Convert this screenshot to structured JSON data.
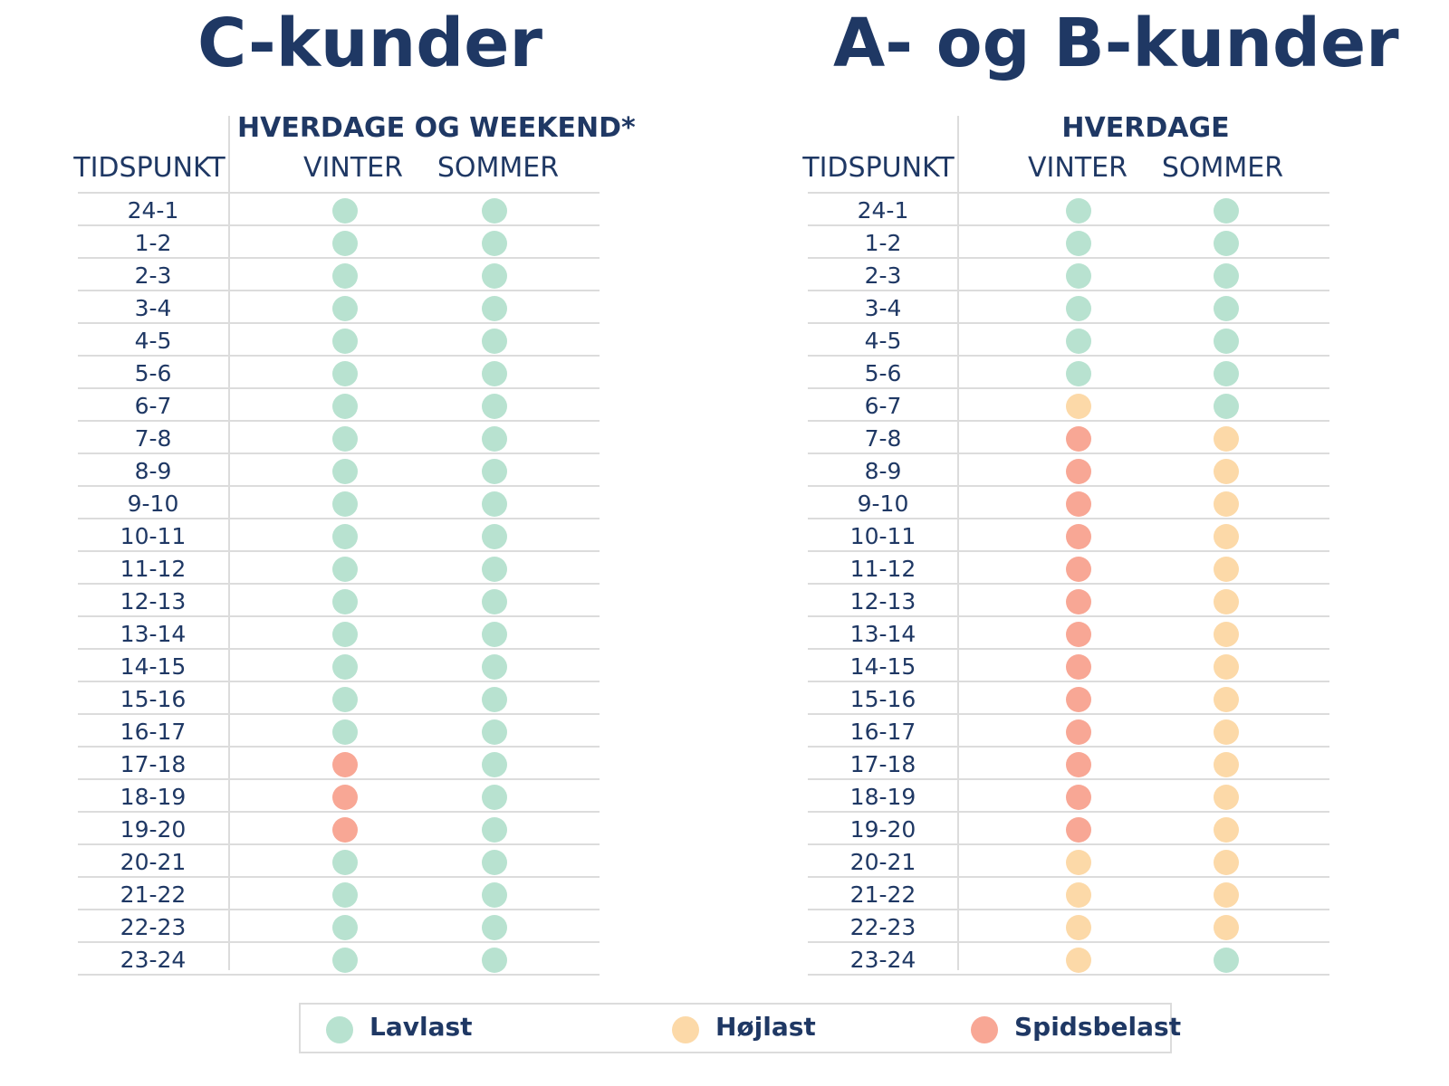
{
  "colors": {
    "low": "#b8e2d0",
    "high": "#fcd9a8",
    "peak": "#f8a795",
    "text": "#1f3864"
  },
  "legend": [
    {
      "label": "Lavlast",
      "level": "low"
    },
    {
      "label": "Højlast",
      "level": "high"
    },
    {
      "label": "Spidsbelast",
      "level": "peak"
    }
  ],
  "panels": [
    {
      "title": "C-kunder",
      "group_header": "HVERDAGE OG WEEKEND*",
      "time_header": "TIDSPUNKT",
      "winter_header": "VINTER",
      "summer_header": "SOMMER",
      "rows": [
        {
          "time": "24-1",
          "winter": "low",
          "summer": "low"
        },
        {
          "time": "1-2",
          "winter": "low",
          "summer": "low"
        },
        {
          "time": "2-3",
          "winter": "low",
          "summer": "low"
        },
        {
          "time": "3-4",
          "winter": "low",
          "summer": "low"
        },
        {
          "time": "4-5",
          "winter": "low",
          "summer": "low"
        },
        {
          "time": "5-6",
          "winter": "low",
          "summer": "low"
        },
        {
          "time": "6-7",
          "winter": "low",
          "summer": "low"
        },
        {
          "time": "7-8",
          "winter": "low",
          "summer": "low"
        },
        {
          "time": "8-9",
          "winter": "low",
          "summer": "low"
        },
        {
          "time": "9-10",
          "winter": "low",
          "summer": "low"
        },
        {
          "time": "10-11",
          "winter": "low",
          "summer": "low"
        },
        {
          "time": "11-12",
          "winter": "low",
          "summer": "low"
        },
        {
          "time": "12-13",
          "winter": "low",
          "summer": "low"
        },
        {
          "time": "13-14",
          "winter": "low",
          "summer": "low"
        },
        {
          "time": "14-15",
          "winter": "low",
          "summer": "low"
        },
        {
          "time": "15-16",
          "winter": "low",
          "summer": "low"
        },
        {
          "time": "16-17",
          "winter": "low",
          "summer": "low"
        },
        {
          "time": "17-18",
          "winter": "peak",
          "summer": "low"
        },
        {
          "time": "18-19",
          "winter": "peak",
          "summer": "low"
        },
        {
          "time": "19-20",
          "winter": "peak",
          "summer": "low"
        },
        {
          "time": "20-21",
          "winter": "low",
          "summer": "low"
        },
        {
          "time": "21-22",
          "winter": "low",
          "summer": "low"
        },
        {
          "time": "22-23",
          "winter": "low",
          "summer": "low"
        },
        {
          "time": "23-24",
          "winter": "low",
          "summer": "low"
        }
      ]
    },
    {
      "title": "A- og B-kunder",
      "group_header": "HVERDAGE",
      "time_header": "TIDSPUNKT",
      "winter_header": "VINTER",
      "summer_header": "SOMMER",
      "rows": [
        {
          "time": "24-1",
          "winter": "low",
          "summer": "low"
        },
        {
          "time": "1-2",
          "winter": "low",
          "summer": "low"
        },
        {
          "time": "2-3",
          "winter": "low",
          "summer": "low"
        },
        {
          "time": "3-4",
          "winter": "low",
          "summer": "low"
        },
        {
          "time": "4-5",
          "winter": "low",
          "summer": "low"
        },
        {
          "time": "5-6",
          "winter": "low",
          "summer": "low"
        },
        {
          "time": "6-7",
          "winter": "high",
          "summer": "low"
        },
        {
          "time": "7-8",
          "winter": "peak",
          "summer": "high"
        },
        {
          "time": "8-9",
          "winter": "peak",
          "summer": "high"
        },
        {
          "time": "9-10",
          "winter": "peak",
          "summer": "high"
        },
        {
          "time": "10-11",
          "winter": "peak",
          "summer": "high"
        },
        {
          "time": "11-12",
          "winter": "peak",
          "summer": "high"
        },
        {
          "time": "12-13",
          "winter": "peak",
          "summer": "high"
        },
        {
          "time": "13-14",
          "winter": "peak",
          "summer": "high"
        },
        {
          "time": "14-15",
          "winter": "peak",
          "summer": "high"
        },
        {
          "time": "15-16",
          "winter": "peak",
          "summer": "high"
        },
        {
          "time": "16-17",
          "winter": "peak",
          "summer": "high"
        },
        {
          "time": "17-18",
          "winter": "peak",
          "summer": "high"
        },
        {
          "time": "18-19",
          "winter": "peak",
          "summer": "high"
        },
        {
          "time": "19-20",
          "winter": "peak",
          "summer": "high"
        },
        {
          "time": "20-21",
          "winter": "high",
          "summer": "high"
        },
        {
          "time": "21-22",
          "winter": "high",
          "summer": "high"
        },
        {
          "time": "22-23",
          "winter": "high",
          "summer": "high"
        },
        {
          "time": "23-24",
          "winter": "high",
          "summer": "low"
        }
      ]
    }
  ]
}
